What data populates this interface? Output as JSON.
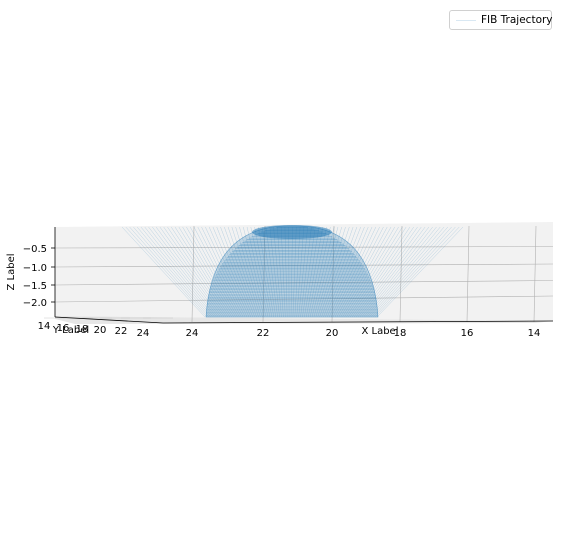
{
  "chart_data": {
    "type": "line",
    "projection": "3d",
    "xlabel": "X Label",
    "ylabel": "Y Label",
    "zlabel": "Z Label",
    "x_ticks": [
      "24",
      "22",
      "20",
      "18",
      "16",
      "14"
    ],
    "y_ticks": [
      "14",
      "16",
      "18",
      "20",
      "22",
      "24"
    ],
    "z_ticks": [
      "−2.0",
      "−1.5",
      "−1.0",
      "−0.5"
    ],
    "xlim": [
      13.5,
      24.5
    ],
    "ylim": [
      13.5,
      24.5
    ],
    "zlim": [
      -2.4,
      -0.2
    ],
    "grid": true,
    "legend_position": "top-right",
    "series": [
      {
        "name": "FIB Trajectory",
        "color": "#1f77b4",
        "shape": "dome",
        "z_min": -2.4,
        "z_max": -0.2
      }
    ]
  },
  "legend": {
    "label": "FIB Trajectory",
    "line_color": "#d9e8f3"
  }
}
